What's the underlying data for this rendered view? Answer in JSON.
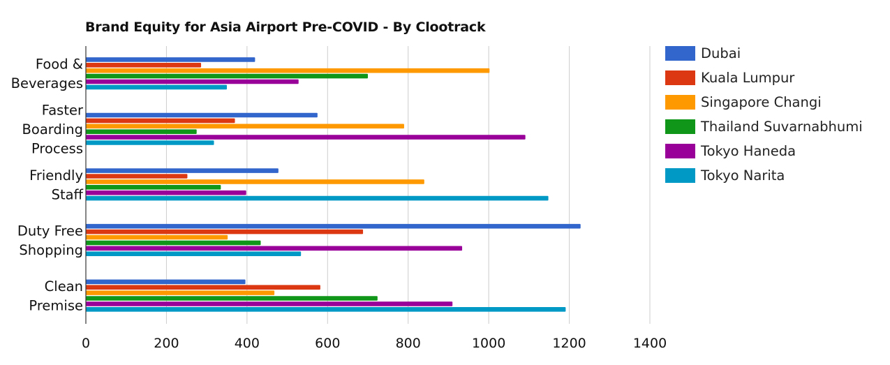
{
  "chart_data": {
    "type": "bar",
    "orientation": "horizontal",
    "title": "Brand Equity for Asia Airport Pre-COVID - By Clootrack",
    "categories": [
      [
        "Food &",
        "Beverages"
      ],
      [
        "Faster",
        "Boarding",
        "Process"
      ],
      [
        "Friendly",
        "Staff"
      ],
      [
        "Duty Free",
        "Shopping"
      ],
      [
        "Clean",
        "Premise"
      ]
    ],
    "series": [
      {
        "name": "Dubai",
        "color": "#3366cc",
        "values": [
          420,
          575,
          478,
          1228,
          396
        ]
      },
      {
        "name": "Kuala Lumpur",
        "color": "#dc3912",
        "values": [
          286,
          370,
          252,
          688,
          582
        ]
      },
      {
        "name": "Singapore Changi",
        "color": "#ff9900",
        "values": [
          1002,
          790,
          840,
          352,
          468
        ]
      },
      {
        "name": "Thailand Suvarnabhumi",
        "color": "#109618",
        "values": [
          700,
          275,
          335,
          434,
          724
        ]
      },
      {
        "name": "Tokyo Haneda",
        "color": "#990099",
        "values": [
          528,
          1091,
          398,
          934,
          910
        ]
      },
      {
        "name": "Tokyo Narita",
        "color": "#0099c6",
        "values": [
          350,
          318,
          1148,
          534,
          1191
        ]
      }
    ],
    "xlim": [
      0,
      1400
    ],
    "xticks": [
      "0",
      "200",
      "400",
      "600",
      "800",
      "1000",
      "1200",
      "1400"
    ],
    "grid": true,
    "legend_position": "right"
  }
}
